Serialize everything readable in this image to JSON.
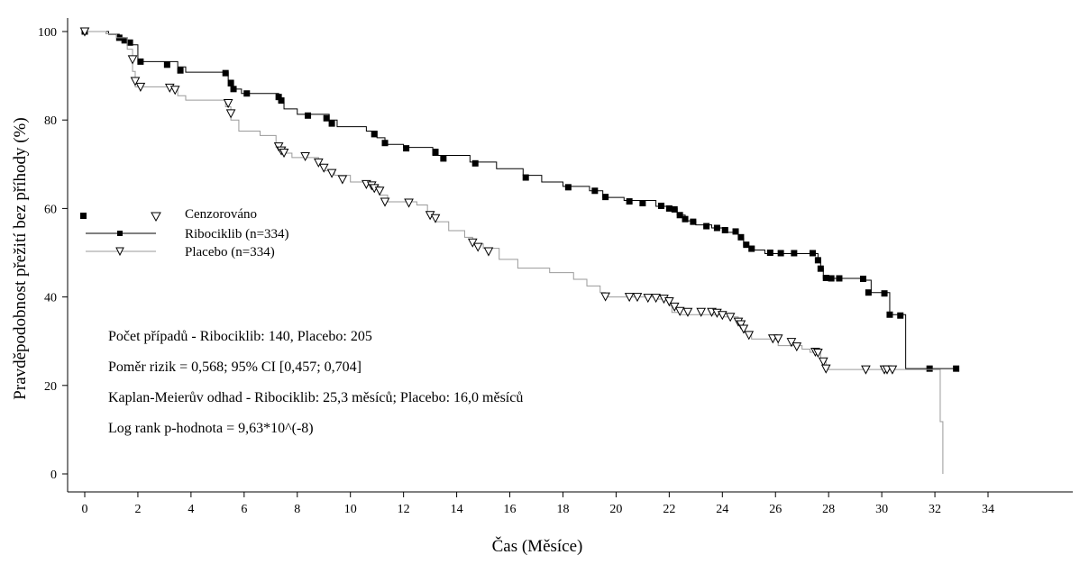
{
  "chart_data": {
    "type": "line",
    "subtype": "kaplan-meier",
    "title": "",
    "xlabel": "Čas (Měsíce)",
    "ylabel": "Pravděpodobnost přežití bez příhody (%)",
    "xlim": [
      0,
      34
    ],
    "ylim": [
      0,
      100
    ],
    "xticks": [
      0,
      2,
      4,
      6,
      8,
      10,
      12,
      14,
      16,
      18,
      20,
      22,
      24,
      26,
      28,
      30,
      32,
      34
    ],
    "yticks": [
      0,
      20,
      40,
      60,
      80,
      100
    ],
    "grid": false,
    "legend": {
      "placement": "middle-left",
      "censored_label": "Cenzorováno",
      "entries": [
        "Ribociklib (n=334)",
        "Placebo (n=334)"
      ]
    },
    "annotations": [
      "Počet případů - Ribociklib: 140, Placebo: 205",
      "Poměr rizik = 0,568; 95% CI [0,457; 0,704]",
      "Kaplan-Meierův odhad - Ribociklib: 25,3 měsíců; Placebo: 16,0 měsíců",
      "Log rank p-hodnota = 9,63*10^(-8)"
    ],
    "series": [
      {
        "name": "Ribociklib (n=334)",
        "color": "#000000",
        "censor_marker": "filled-square",
        "steps": [
          [
            0,
            100
          ],
          [
            0.9,
            99.4
          ],
          [
            1.3,
            98.6
          ],
          [
            1.5,
            98.0
          ],
          [
            1.7,
            97.0
          ],
          [
            2.0,
            93.2
          ],
          [
            3.5,
            92.0
          ],
          [
            3.8,
            90.8
          ],
          [
            5.4,
            89.0
          ],
          [
            5.6,
            87.0
          ],
          [
            5.9,
            86.0
          ],
          [
            7.3,
            84.0
          ],
          [
            7.5,
            82.5
          ],
          [
            8.0,
            81.3
          ],
          [
            9.2,
            80.0
          ],
          [
            9.5,
            78.5
          ],
          [
            10.6,
            77.5
          ],
          [
            11.0,
            76.0
          ],
          [
            11.3,
            74.5
          ],
          [
            12.0,
            73.8
          ],
          [
            13.1,
            72.0
          ],
          [
            14.5,
            70.5
          ],
          [
            15.5,
            69.0
          ],
          [
            16.5,
            67.5
          ],
          [
            17.2,
            66.0
          ],
          [
            18.0,
            65.0
          ],
          [
            19.0,
            64.0
          ],
          [
            19.5,
            62.5
          ],
          [
            20.3,
            61.8
          ],
          [
            21.5,
            60.5
          ],
          [
            22.0,
            60.0
          ],
          [
            22.3,
            58.5
          ],
          [
            22.6,
            57.2
          ],
          [
            23.0,
            56.3
          ],
          [
            23.6,
            55.6
          ],
          [
            24.2,
            54.6
          ],
          [
            24.6,
            53.3
          ],
          [
            24.8,
            51.5
          ],
          [
            25.2,
            50.6
          ],
          [
            25.6,
            49.8
          ],
          [
            27.6,
            48.2
          ],
          [
            27.7,
            46.5
          ],
          [
            27.8,
            44.2
          ],
          [
            29.4,
            43.8
          ],
          [
            29.6,
            41.0
          ],
          [
            30.3,
            36.0
          ],
          [
            30.9,
            23.8
          ],
          [
            32.8,
            23.8
          ]
        ],
        "censored": [
          [
            0,
            100
          ],
          [
            1.3,
            98.6
          ],
          [
            1.5,
            98.0
          ],
          [
            1.7,
            97.5
          ],
          [
            2.1,
            93.2
          ],
          [
            3.1,
            92.5
          ],
          [
            3.6,
            91.2
          ],
          [
            5.3,
            90.6
          ],
          [
            5.5,
            88.3
          ],
          [
            5.6,
            87.0
          ],
          [
            6.1,
            86.0
          ],
          [
            7.3,
            85.2
          ],
          [
            7.4,
            84.4
          ],
          [
            8.4,
            81.0
          ],
          [
            9.1,
            80.4
          ],
          [
            9.3,
            79.2
          ],
          [
            10.9,
            76.8
          ],
          [
            11.3,
            74.8
          ],
          [
            12.1,
            73.6
          ],
          [
            13.2,
            72.8
          ],
          [
            13.5,
            71.3
          ],
          [
            14.7,
            70.2
          ],
          [
            16.6,
            67.0
          ],
          [
            18.2,
            64.8
          ],
          [
            19.2,
            64.0
          ],
          [
            19.6,
            62.6
          ],
          [
            20.5,
            61.6
          ],
          [
            21.0,
            61.2
          ],
          [
            21.7,
            60.6
          ],
          [
            22.0,
            60.0
          ],
          [
            22.2,
            59.8
          ],
          [
            22.4,
            58.5
          ],
          [
            22.6,
            57.6
          ],
          [
            22.9,
            57.0
          ],
          [
            23.4,
            56.0
          ],
          [
            23.8,
            55.6
          ],
          [
            24.1,
            55.1
          ],
          [
            24.5,
            54.8
          ],
          [
            24.7,
            53.5
          ],
          [
            24.9,
            51.8
          ],
          [
            25.1,
            50.9
          ],
          [
            25.8,
            50.0
          ],
          [
            26.2,
            49.9
          ],
          [
            26.7,
            49.9
          ],
          [
            27.4,
            49.9
          ],
          [
            27.6,
            48.3
          ],
          [
            27.7,
            46.4
          ],
          [
            27.9,
            44.3
          ],
          [
            28.1,
            44.2
          ],
          [
            28.4,
            44.2
          ],
          [
            29.3,
            44.1
          ],
          [
            29.5,
            41.0
          ],
          [
            30.1,
            40.8
          ],
          [
            30.3,
            36.0
          ],
          [
            30.7,
            35.8
          ],
          [
            31.8,
            23.8
          ],
          [
            32.8,
            23.8
          ]
        ]
      },
      {
        "name": "Placebo (n=334)",
        "color": "#9a9a9a",
        "censor_marker": "open-triangle-down",
        "steps": [
          [
            0,
            100
          ],
          [
            0.8,
            99.5
          ],
          [
            1.2,
            98.6
          ],
          [
            1.6,
            96.0
          ],
          [
            1.8,
            91.0
          ],
          [
            1.9,
            87.5
          ],
          [
            3.5,
            85.5
          ],
          [
            3.8,
            84.5
          ],
          [
            5.3,
            83.0
          ],
          [
            5.5,
            80.0
          ],
          [
            5.8,
            77.5
          ],
          [
            6.6,
            76.5
          ],
          [
            7.2,
            73.8
          ],
          [
            7.4,
            72.5
          ],
          [
            7.8,
            71.5
          ],
          [
            8.8,
            70.0
          ],
          [
            9.0,
            68.5
          ],
          [
            9.4,
            67.5
          ],
          [
            10.0,
            66.0
          ],
          [
            10.8,
            65.0
          ],
          [
            11.1,
            63.0
          ],
          [
            11.4,
            61.5
          ],
          [
            12.5,
            60.8
          ],
          [
            12.9,
            58.5
          ],
          [
            13.2,
            57.0
          ],
          [
            13.7,
            55.0
          ],
          [
            14.3,
            53.5
          ],
          [
            14.6,
            52.0
          ],
          [
            15.0,
            51.0
          ],
          [
            15.6,
            48.5
          ],
          [
            16.3,
            46.5
          ],
          [
            17.5,
            45.5
          ],
          [
            18.4,
            44.0
          ],
          [
            18.9,
            42.5
          ],
          [
            19.4,
            41.0
          ],
          [
            19.6,
            40.0
          ],
          [
            21.5,
            39.5
          ],
          [
            22.0,
            38.0
          ],
          [
            22.1,
            36.5
          ],
          [
            22.4,
            36.0
          ],
          [
            24.0,
            35.5
          ],
          [
            24.6,
            34.5
          ],
          [
            24.8,
            32.0
          ],
          [
            25.1,
            30.5
          ],
          [
            26.1,
            29.0
          ],
          [
            27.0,
            28.2
          ],
          [
            27.3,
            27.5
          ],
          [
            27.7,
            26.0
          ],
          [
            27.9,
            23.6
          ],
          [
            32.1,
            23.6
          ],
          [
            32.2,
            11.8
          ],
          [
            32.3,
            0
          ]
        ],
        "censored": [
          [
            0,
            100
          ],
          [
            1.8,
            93.7
          ],
          [
            1.9,
            88.8
          ],
          [
            2.1,
            87.5
          ],
          [
            3.2,
            87.3
          ],
          [
            3.4,
            86.8
          ],
          [
            5.4,
            83.8
          ],
          [
            5.5,
            81.5
          ],
          [
            7.3,
            74.0
          ],
          [
            7.4,
            73.1
          ],
          [
            7.5,
            72.6
          ],
          [
            8.3,
            71.8
          ],
          [
            8.8,
            70.4
          ],
          [
            9.0,
            69.2
          ],
          [
            9.3,
            68.0
          ],
          [
            9.7,
            66.6
          ],
          [
            10.6,
            65.5
          ],
          [
            10.8,
            65.2
          ],
          [
            10.9,
            64.6
          ],
          [
            11.1,
            64.0
          ],
          [
            11.3,
            61.5
          ],
          [
            12.2,
            61.3
          ],
          [
            13.0,
            58.5
          ],
          [
            13.2,
            57.8
          ],
          [
            14.6,
            52.3
          ],
          [
            14.8,
            51.3
          ],
          [
            15.2,
            50.3
          ],
          [
            19.6,
            40.1
          ],
          [
            20.5,
            40.0
          ],
          [
            20.8,
            40.0
          ],
          [
            21.2,
            39.8
          ],
          [
            21.5,
            39.8
          ],
          [
            21.8,
            39.6
          ],
          [
            22.0,
            39.0
          ],
          [
            22.2,
            37.8
          ],
          [
            22.4,
            36.8
          ],
          [
            22.7,
            36.6
          ],
          [
            23.2,
            36.6
          ],
          [
            23.6,
            36.6
          ],
          [
            23.8,
            36.4
          ],
          [
            24.0,
            35.9
          ],
          [
            24.3,
            35.5
          ],
          [
            24.6,
            34.4
          ],
          [
            24.7,
            33.8
          ],
          [
            24.8,
            32.8
          ],
          [
            25.0,
            31.4
          ],
          [
            25.9,
            30.6
          ],
          [
            26.1,
            30.6
          ],
          [
            26.6,
            29.8
          ],
          [
            26.8,
            28.8
          ],
          [
            27.5,
            27.6
          ],
          [
            27.6,
            27.4
          ],
          [
            27.8,
            25.4
          ],
          [
            27.9,
            23.8
          ],
          [
            29.4,
            23.6
          ],
          [
            30.1,
            23.6
          ],
          [
            30.2,
            23.6
          ],
          [
            30.4,
            23.6
          ]
        ]
      }
    ]
  }
}
